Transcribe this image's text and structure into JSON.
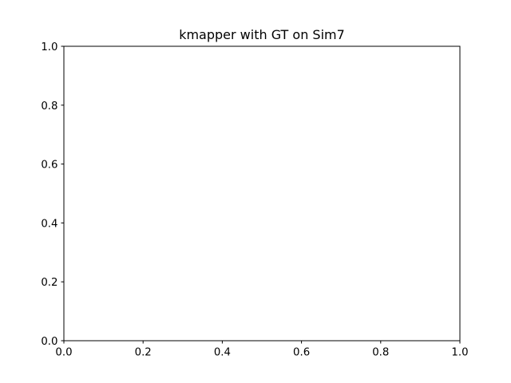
{
  "chart_data": {
    "type": "scatter",
    "title": "kmapper with GT on Sim7",
    "xlabel": "",
    "ylabel": "",
    "xlim": [
      0.0,
      1.0
    ],
    "ylim": [
      0.0,
      1.0
    ],
    "x_ticks": [
      "0.0",
      "0.2",
      "0.4",
      "0.6",
      "0.8",
      "1.0"
    ],
    "y_ticks": [
      "0.0",
      "0.2",
      "0.4",
      "0.6",
      "0.8",
      "1.0"
    ],
    "series": [],
    "grid": false,
    "legend": "none"
  }
}
